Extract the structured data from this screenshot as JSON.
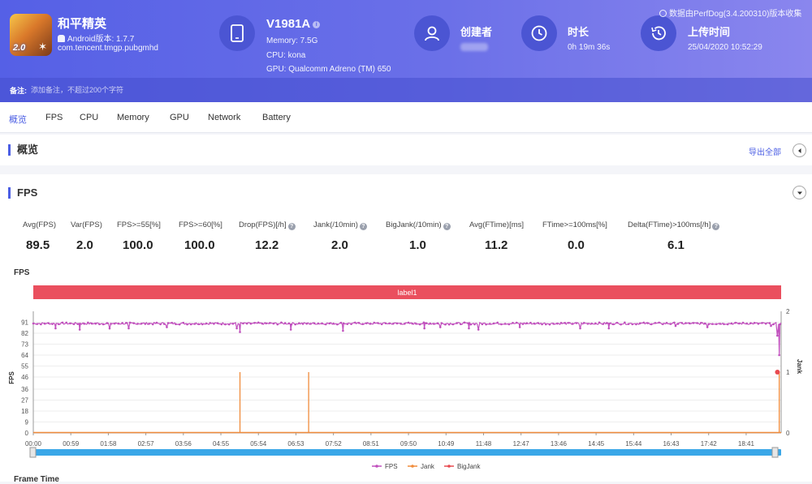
{
  "header": {
    "app_name": "和平精英",
    "android_version": "Android版本: 1.7.7",
    "package": "com.tencent.tmgp.pubgmhd",
    "icon_badge": "2.0",
    "device_name": "V1981A",
    "memory": "Memory: 7.5G",
    "cpu": "CPU: kona",
    "gpu": "GPU: Qualcomm Adreno (TM) 650",
    "creator_label": "创建者",
    "duration_label": "时长",
    "duration_value": "0h 19m 36s",
    "upload_label": "上传时间",
    "upload_value": "25/04/2020 10:52:29",
    "collect_note": "数据由PerfDog(3.4.200310)版本收集",
    "remark_label": "备注:",
    "remark_placeholder": "添加备注，不超过200个字符",
    "icons": [
      "phone-icon",
      "user-icon",
      "clock-icon",
      "history-icon"
    ]
  },
  "tabs": [
    {
      "label": "概览",
      "active": true
    },
    {
      "label": "FPS",
      "active": false
    },
    {
      "label": "CPU",
      "active": false
    },
    {
      "label": "Memory",
      "active": false
    },
    {
      "label": "GPU",
      "active": false
    },
    {
      "label": "Network",
      "active": false
    },
    {
      "label": "Battery",
      "active": false
    }
  ],
  "overview": {
    "title": "概览",
    "export_label": "导出全部"
  },
  "fps_section": {
    "title": "FPS",
    "chart_title": "FPS",
    "next_chart_title": "Frame Time",
    "metrics": [
      {
        "label": "Avg(FPS)",
        "value": "89.5",
        "help": false
      },
      {
        "label": "Var(FPS)",
        "value": "2.0",
        "help": false
      },
      {
        "label": "FPS>=55[%]",
        "value": "100.0",
        "help": false
      },
      {
        "label": "FPS>=60[%]",
        "value": "100.0",
        "help": false
      },
      {
        "label": "Drop(FPS)[/h]",
        "value": "12.2",
        "help": true
      },
      {
        "label": "Jank(/10min)",
        "value": "2.0",
        "help": true
      },
      {
        "label": "BigJank(/10min)",
        "value": "1.0",
        "help": true
      },
      {
        "label": "Avg(FTime)[ms]",
        "value": "11.2",
        "help": false
      },
      {
        "label": "FTime>=100ms[%]",
        "value": "0.0",
        "help": false
      },
      {
        "label": "Delta(FTime)>100ms[/h]",
        "value": "6.1",
        "help": true
      }
    ]
  },
  "chart_data": {
    "type": "line",
    "band_label": "label1",
    "ylabel": "FPS",
    "y2label": "Jank",
    "y_ticks": [
      0,
      9,
      18,
      27,
      36,
      46,
      55,
      64,
      73,
      82,
      91
    ],
    "ylim": [
      0,
      100
    ],
    "y2_ticks": [
      0,
      1,
      2
    ],
    "y2lim": [
      0,
      2
    ],
    "x_ticks": [
      "00:00",
      "00:59",
      "01:58",
      "02:57",
      "03:56",
      "04:55",
      "05:54",
      "06:53",
      "07:52",
      "08:51",
      "09:50",
      "10:49",
      "11:48",
      "12:47",
      "13:46",
      "14:45",
      "15:44",
      "16:43",
      "17:42",
      "18:41"
    ],
    "x_range_seconds": [
      0,
      1176
    ],
    "legend_position": "bottom",
    "series": [
      {
        "name": "FPS",
        "color": "#c04fbd",
        "baseline": 90,
        "dips": [
          [
            35,
            86
          ],
          [
            73,
            85
          ],
          [
            120,
            86
          ],
          [
            150,
            86
          ],
          [
            210,
            87
          ],
          [
            320,
            86
          ],
          [
            325,
            83
          ],
          [
            405,
            85
          ],
          [
            487,
            84
          ],
          [
            615,
            86
          ],
          [
            640,
            87
          ],
          [
            685,
            86
          ],
          [
            700,
            85
          ],
          [
            765,
            87
          ],
          [
            860,
            86
          ],
          [
            905,
            86
          ],
          [
            1010,
            88
          ],
          [
            1060,
            87
          ],
          [
            1160,
            88
          ],
          [
            1170,
            80
          ],
          [
            1173,
            64
          ]
        ]
      },
      {
        "name": "Jank",
        "color": "#f08c3c",
        "spikes": [
          [
            325,
            1
          ],
          [
            433,
            1
          ],
          [
            1173,
            1
          ]
        ]
      },
      {
        "name": "BigJank",
        "color": "#e84a50",
        "spikes": [
          [
            1174,
            1
          ]
        ]
      }
    ]
  }
}
